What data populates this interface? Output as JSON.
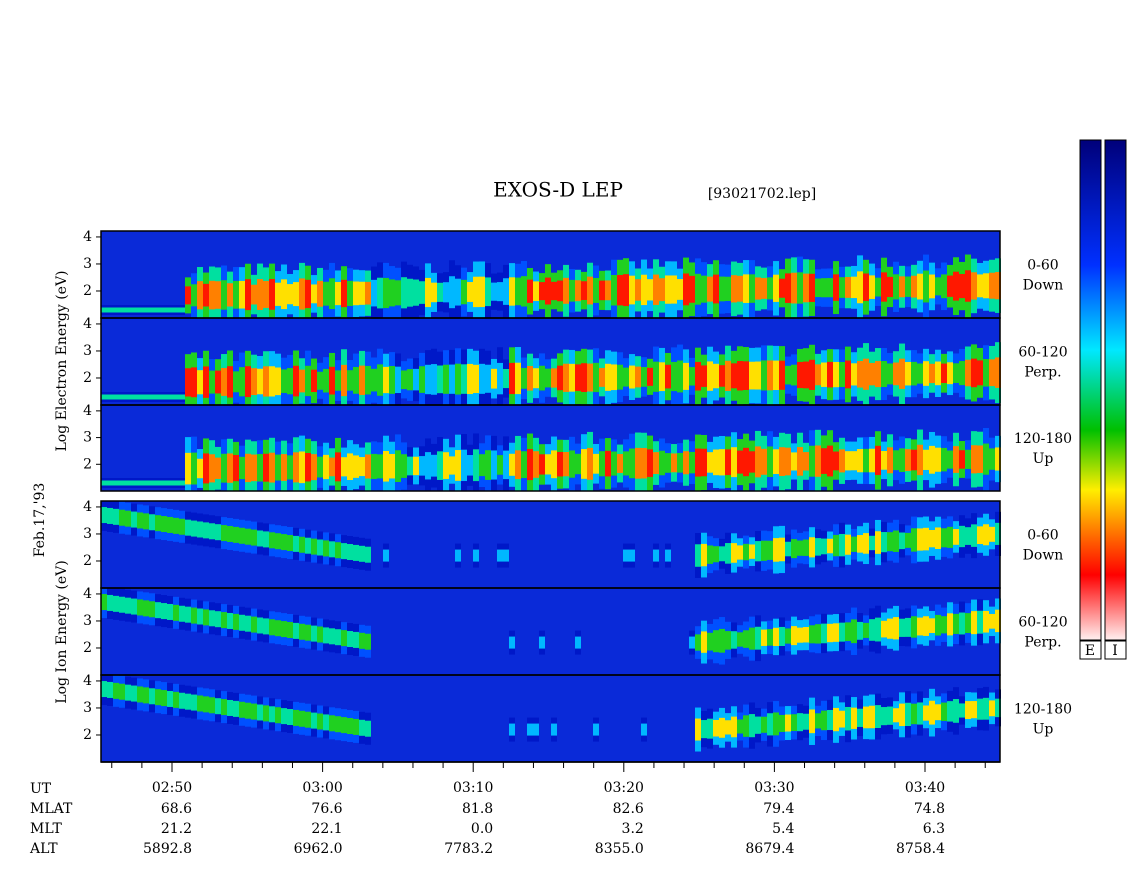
{
  "header": {
    "title": "EXOS-D LEP",
    "file": "[93021702.lep]"
  },
  "date": "Feb.17,'93",
  "electron": {
    "axis_label": "Log Electron Energy (eV)",
    "panels": [
      {
        "line1": "0-60",
        "line2": "Down"
      },
      {
        "line1": "60-120",
        "line2": "Perp."
      },
      {
        "line1": "120-180",
        "line2": "Up"
      }
    ]
  },
  "ion": {
    "axis_label": "Log Ion Energy (eV)",
    "panels": [
      {
        "line1": "0-60",
        "line2": "Down"
      },
      {
        "line1": "60-120",
        "line2": "Perp."
      },
      {
        "line1": "120-180",
        "line2": "Up"
      }
    ]
  },
  "energy_axis": {
    "ylim": [
      1,
      4.22
    ],
    "yticks": [
      2,
      3,
      4
    ]
  },
  "time_axis": {
    "ticks": [
      "02:50",
      "03:00",
      "03:10",
      "03:20",
      "03:30",
      "03:40"
    ]
  },
  "ephemeris": {
    "rows": [
      {
        "name": "UT"
      },
      {
        "name": "MLAT",
        "values": [
          "68.6",
          "76.6",
          "81.8",
          "82.6",
          "79.4",
          "74.8"
        ]
      },
      {
        "name": "MLT",
        "values": [
          "21.2",
          "22.1",
          "0.0",
          "3.2",
          "5.4",
          "6.3"
        ]
      },
      {
        "name": "ALT",
        "values": [
          "5892.8",
          "6962.0",
          "7783.2",
          "8355.0",
          "8679.4",
          "8758.4"
        ]
      }
    ]
  },
  "colorbar": {
    "labels": [
      "E",
      "I"
    ]
  }
}
